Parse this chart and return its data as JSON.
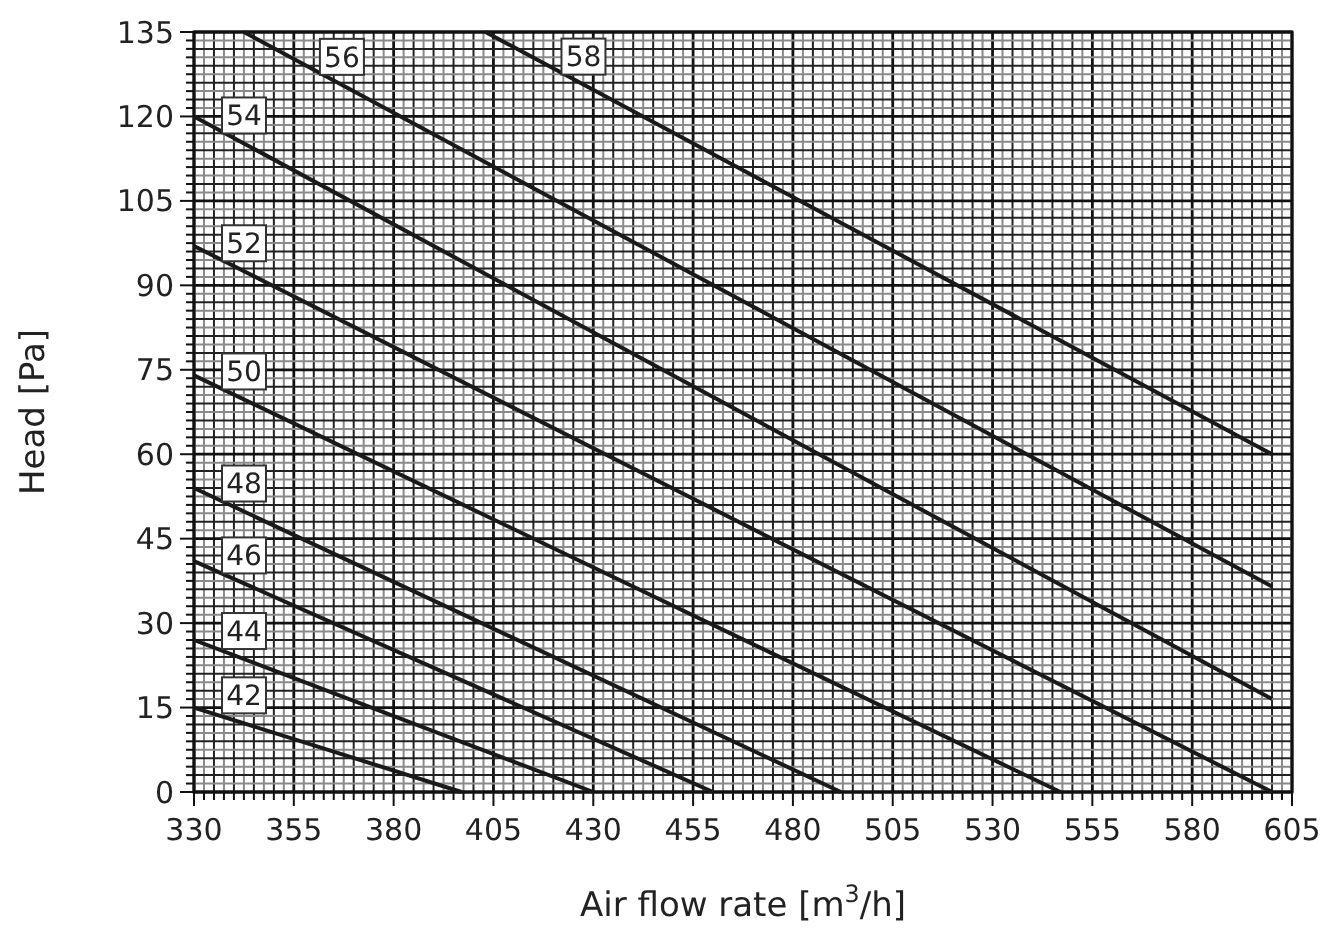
{
  "chart_data": {
    "type": "line",
    "xlabel": "Air flow rate [m$^{3}$/h]",
    "ylabel": "Head [Pa]",
    "xlim": [
      330,
      605
    ],
    "ylim": [
      0,
      135
    ],
    "xticks": [
      330,
      355,
      380,
      405,
      430,
      455,
      480,
      505,
      530,
      555,
      580,
      605
    ],
    "yticks": [
      0,
      15,
      30,
      45,
      60,
      75,
      90,
      105,
      120,
      135
    ],
    "grid": true,
    "marker": "none",
    "line_style": "solid",
    "series": [
      {
        "name": "42",
        "color": "#1a1a1a",
        "x": [
          330,
          397
        ],
        "values": [
          15,
          0
        ]
      },
      {
        "name": "44",
        "color": "#1a1a1a",
        "x": [
          330,
          430
        ],
        "values": [
          27,
          0
        ]
      },
      {
        "name": "46",
        "color": "#1a1a1a",
        "x": [
          330,
          460
        ],
        "values": [
          41,
          0
        ]
      },
      {
        "name": "48",
        "color": "#1a1a1a",
        "x": [
          330,
          492
        ],
        "values": [
          54,
          0
        ]
      },
      {
        "name": "50",
        "color": "#1a1a1a",
        "x": [
          330,
          547
        ],
        "values": [
          74,
          0
        ]
      },
      {
        "name": "52",
        "color": "#1a1a1a",
        "x": [
          330,
          600
        ],
        "values": [
          97,
          0
        ]
      },
      {
        "name": "54",
        "color": "#1a1a1a",
        "x": [
          330,
          600
        ],
        "values": [
          120,
          16.5
        ]
      },
      {
        "name": "56",
        "color": "#1a1a1a",
        "x": [
          342.5,
          600
        ],
        "values": [
          135,
          36.5
        ]
      },
      {
        "name": "58",
        "color": "#1a1a1a",
        "x": [
          403,
          600
        ],
        "values": [
          135,
          60
        ]
      }
    ]
  }
}
